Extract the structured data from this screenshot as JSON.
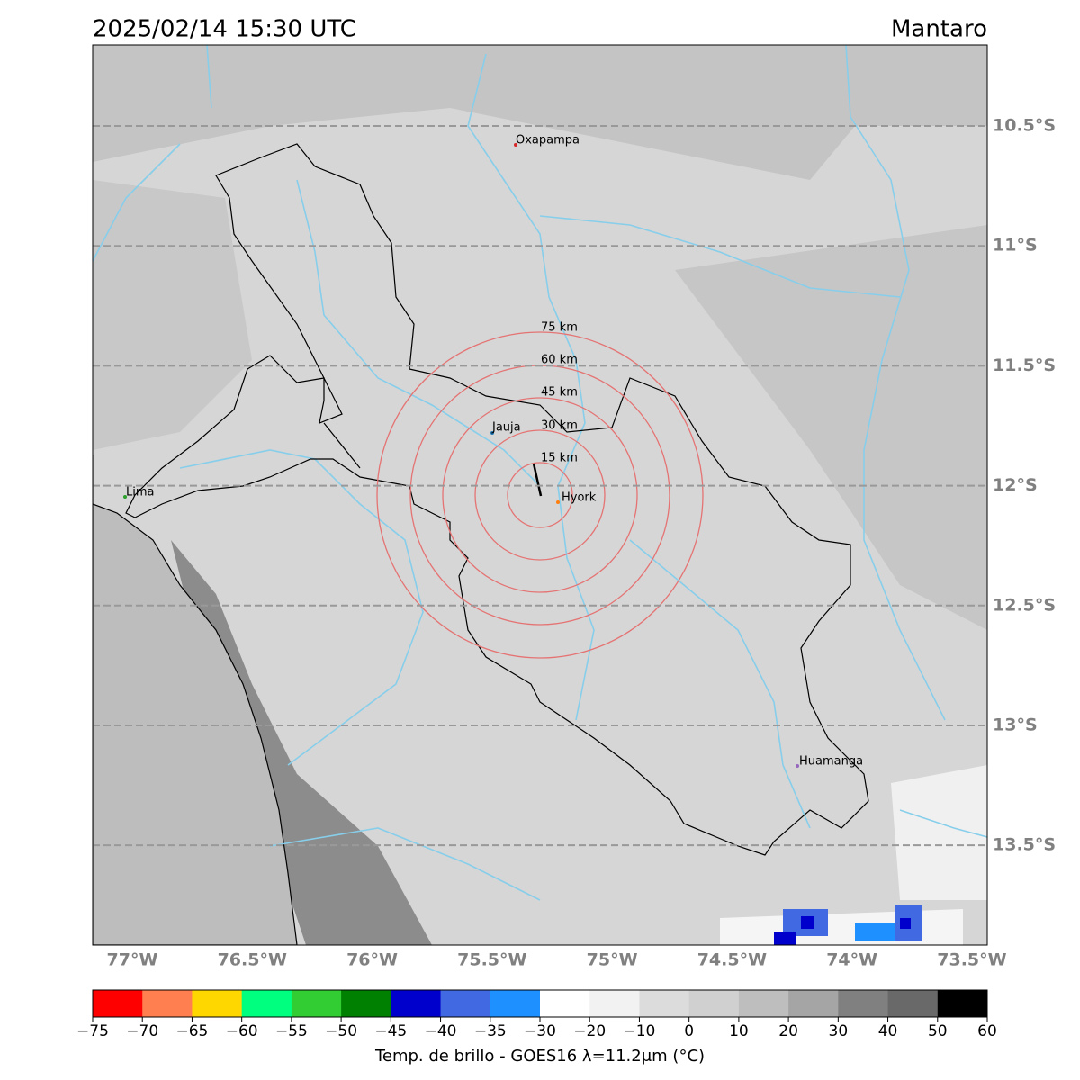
{
  "title": "2025/02/14 15:30 UTC",
  "region": "Mantaro",
  "map": {
    "lonlim": [
      -77.165,
      -73.436
    ],
    "latlim": [
      -13.916,
      -10.162
    ],
    "lon_ticks": [
      {
        "value": -77,
        "label": "77°W"
      },
      {
        "value": -76.5,
        "label": "76.5°W"
      },
      {
        "value": -76,
        "label": "76°W"
      },
      {
        "value": -75.5,
        "label": "75.5°W"
      },
      {
        "value": -75,
        "label": "75°W"
      },
      {
        "value": -74.5,
        "label": "74.5°W"
      },
      {
        "value": -74,
        "label": "74°W"
      },
      {
        "value": -73.5,
        "label": "73.5°W"
      }
    ],
    "lat_ticks": [
      {
        "value": -10.5,
        "label": "10.5°S"
      },
      {
        "value": -11,
        "label": "11°S"
      },
      {
        "value": -11.5,
        "label": "11.5°S"
      },
      {
        "value": -12,
        "label": "12°S"
      },
      {
        "value": -12.5,
        "label": "12.5°S"
      },
      {
        "value": -13,
        "label": "13°S"
      },
      {
        "value": -13.5,
        "label": "13.5°S"
      }
    ],
    "cities": [
      "Oxapampa",
      "Jauja",
      "Hyork",
      "Lima",
      "Huamanga"
    ],
    "rings": [
      "15 km",
      "30 km",
      "45 km",
      "60 km",
      "75 km"
    ]
  },
  "colorbar": {
    "label": "Temp. de brillo - GOES16 λ=11.2μm (°C)",
    "ticks": [
      {
        "value": -75,
        "label": "−75"
      },
      {
        "value": -70,
        "label": "−70"
      },
      {
        "value": -65,
        "label": "−65"
      },
      {
        "value": -60,
        "label": "−60"
      },
      {
        "value": -55,
        "label": "−55"
      },
      {
        "value": -50,
        "label": "−50"
      },
      {
        "value": -45,
        "label": "−45"
      },
      {
        "value": -40,
        "label": "−40"
      },
      {
        "value": -35,
        "label": "−35"
      },
      {
        "value": -30,
        "label": "−30"
      },
      {
        "value": -20,
        "label": "−20"
      },
      {
        "value": -10,
        "label": "−10"
      },
      0,
      10,
      20,
      30,
      40,
      50,
      60
    ],
    "colors": [
      "#ff0000",
      "#ff7f50",
      "#ffd700",
      "#00ff7f",
      "#32cd32",
      "#008000",
      "#0000cd",
      "#4169e1",
      "#1e90ff",
      "#ffffff",
      "#f2f2f2",
      "#dcdcdc",
      "#d0d0d0",
      "#bebebe",
      "#a5a5a5",
      "#808080",
      "#696969",
      "#000000"
    ]
  }
}
